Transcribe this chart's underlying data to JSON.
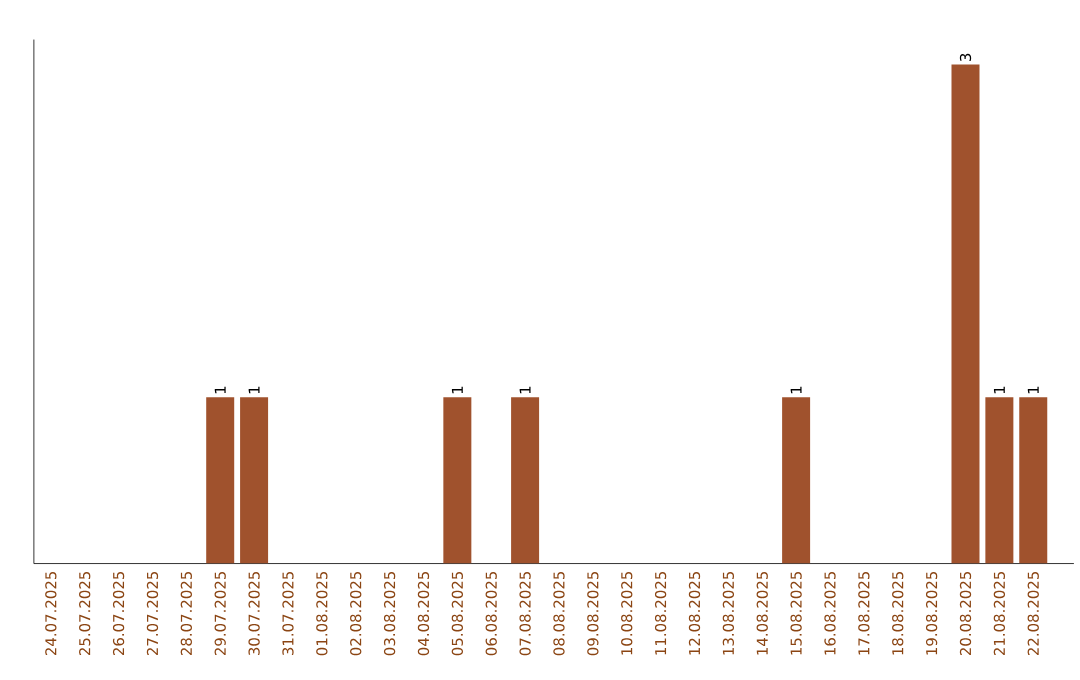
{
  "chart_data": {
    "type": "bar",
    "categories": [
      "24.07.2025",
      "25.07.2025",
      "26.07.2025",
      "27.07.2025",
      "28.07.2025",
      "29.07.2025",
      "30.07.2025",
      "31.07.2025",
      "01.08.2025",
      "02.08.2025",
      "03.08.2025",
      "04.08.2025",
      "05.08.2025",
      "06.08.2025",
      "07.08.2025",
      "08.08.2025",
      "09.08.2025",
      "10.08.2025",
      "11.08.2025",
      "12.08.2025",
      "13.08.2025",
      "14.08.2025",
      "15.08.2025",
      "16.08.2025",
      "17.08.2025",
      "18.08.2025",
      "19.08.2025",
      "20.08.2025",
      "21.08.2025",
      "22.08.2025"
    ],
    "values": [
      0,
      0,
      0,
      0,
      0,
      1,
      1,
      0,
      0,
      0,
      0,
      0,
      1,
      0,
      1,
      0,
      0,
      0,
      0,
      0,
      0,
      0,
      1,
      0,
      0,
      0,
      0,
      3,
      1,
      1
    ],
    "value_labels": [
      null,
      null,
      null,
      null,
      null,
      "1",
      "1",
      null,
      null,
      null,
      null,
      null,
      "1",
      null,
      "1",
      null,
      null,
      null,
      null,
      null,
      null,
      null,
      "1",
      null,
      null,
      null,
      null,
      "3",
      "1",
      "1"
    ],
    "color": "#a0522d"
  }
}
